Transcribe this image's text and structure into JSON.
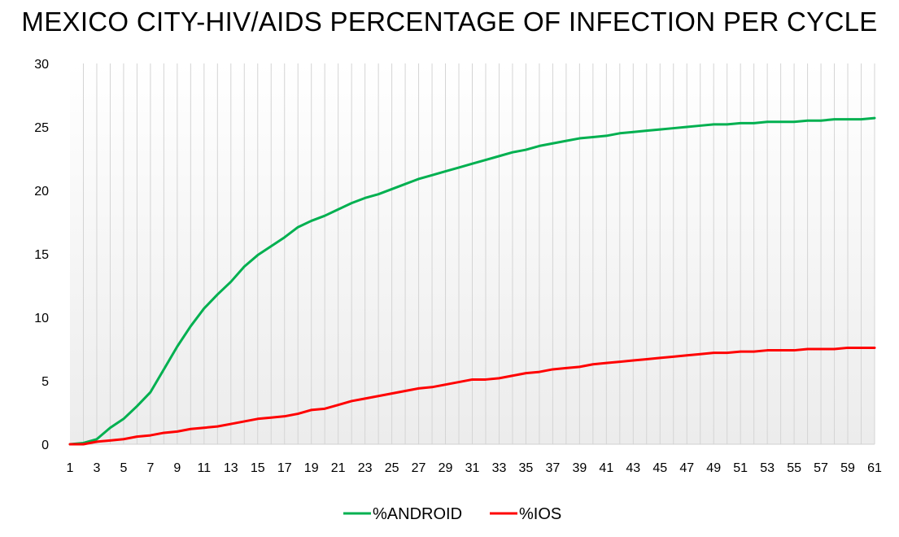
{
  "chart_data": {
    "type": "line",
    "title": "MEXICO CITY-HIV/AIDS PERCENTAGE OF INFECTION PER CYCLE",
    "xlabel": "",
    "ylabel": "",
    "x": [
      1,
      2,
      3,
      4,
      5,
      6,
      7,
      8,
      9,
      10,
      11,
      12,
      13,
      14,
      15,
      16,
      17,
      18,
      19,
      20,
      21,
      22,
      23,
      24,
      25,
      26,
      27,
      28,
      29,
      30,
      31,
      32,
      33,
      34,
      35,
      36,
      37,
      38,
      39,
      40,
      41,
      42,
      43,
      44,
      45,
      46,
      47,
      48,
      49,
      50,
      51,
      52,
      53,
      54,
      55,
      56,
      57,
      58,
      59,
      60,
      61
    ],
    "x_tick_labels": [
      "1",
      "3",
      "5",
      "7",
      "9",
      "11",
      "13",
      "15",
      "17",
      "19",
      "21",
      "23",
      "25",
      "27",
      "29",
      "31",
      "33",
      "35",
      "37",
      "39",
      "41",
      "43",
      "45",
      "47",
      "49",
      "51",
      "53",
      "55",
      "57",
      "59",
      "61"
    ],
    "ylim": [
      0,
      30
    ],
    "y_ticks": [
      0,
      5,
      10,
      15,
      20,
      25,
      30
    ],
    "grid": "vertical",
    "legend_position": "bottom",
    "series": [
      {
        "name": "%ANDROID",
        "color": "#00b050",
        "values": [
          0.0,
          0.1,
          0.4,
          1.3,
          2.0,
          3.0,
          4.1,
          5.9,
          7.7,
          9.3,
          10.7,
          11.8,
          12.8,
          14.0,
          14.9,
          15.6,
          16.3,
          17.1,
          17.6,
          18.0,
          18.5,
          19.0,
          19.4,
          19.7,
          20.1,
          20.5,
          20.9,
          21.2,
          21.5,
          21.8,
          22.1,
          22.4,
          22.7,
          23.0,
          23.2,
          23.5,
          23.7,
          23.9,
          24.1,
          24.2,
          24.3,
          24.5,
          24.6,
          24.7,
          24.8,
          24.9,
          25.0,
          25.1,
          25.2,
          25.2,
          25.3,
          25.3,
          25.4,
          25.4,
          25.4,
          25.5,
          25.5,
          25.6,
          25.6,
          25.6,
          25.7
        ]
      },
      {
        "name": "%IOS",
        "color": "#ff0000",
        "values": [
          0.0,
          0.0,
          0.2,
          0.3,
          0.4,
          0.6,
          0.7,
          0.9,
          1.0,
          1.2,
          1.3,
          1.4,
          1.6,
          1.8,
          2.0,
          2.1,
          2.2,
          2.4,
          2.7,
          2.8,
          3.1,
          3.4,
          3.6,
          3.8,
          4.0,
          4.2,
          4.4,
          4.5,
          4.7,
          4.9,
          5.1,
          5.1,
          5.2,
          5.4,
          5.6,
          5.7,
          5.9,
          6.0,
          6.1,
          6.3,
          6.4,
          6.5,
          6.6,
          6.7,
          6.8,
          6.9,
          7.0,
          7.1,
          7.2,
          7.2,
          7.3,
          7.3,
          7.4,
          7.4,
          7.4,
          7.5,
          7.5,
          7.5,
          7.6,
          7.6,
          7.6
        ]
      }
    ]
  }
}
